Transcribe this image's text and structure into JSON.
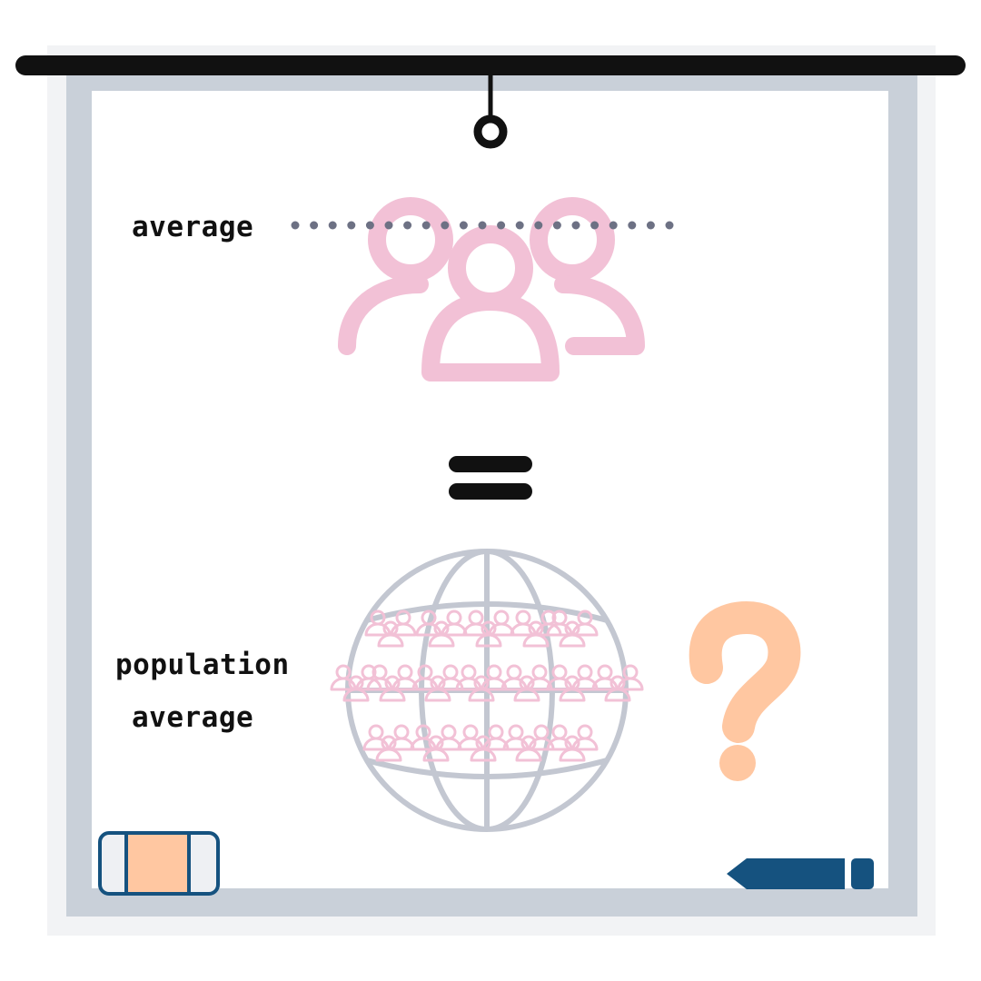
{
  "labels": {
    "sample": "average",
    "population_line1": "population",
    "population_line2": "average"
  },
  "icons": {
    "sample_group": "users-group-icon",
    "equals": "equals-icon",
    "globe": "globe-icon",
    "question": "question-mark-icon",
    "eraser": "eraser-icon",
    "marker": "marker-icon"
  },
  "colors": {
    "board_frame": "#c9d0d9",
    "board_surface": "#ffffff",
    "backdrop": "#f2f3f5",
    "ink": "#111111",
    "people": "#f2c1d6",
    "globe": "#c3c7d1",
    "dots": "#6d7184",
    "question": "#ffc7a1",
    "eraser_pad": "#ffc7a1",
    "eraser_body": "#eef0f3",
    "eraser_outline": "#15527f",
    "marker": "#15527f"
  }
}
